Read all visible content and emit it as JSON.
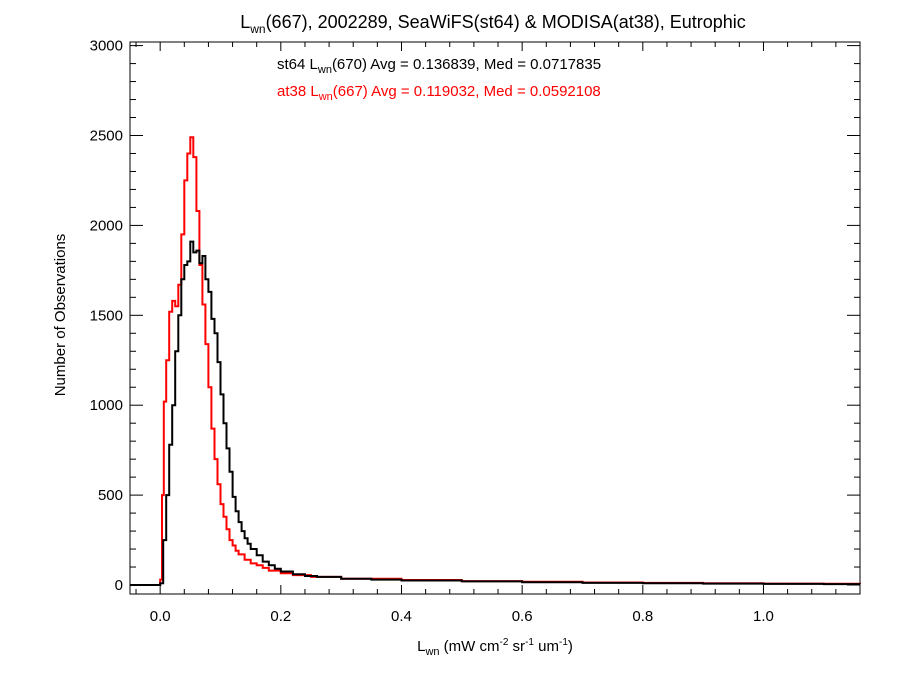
{
  "chart_data": {
    "type": "line",
    "title": {
      "base": "L",
      "sub": "wn",
      "rest": "(667), 2002289, SeaWiFS(st64) & MODISA(at38), Eutrophic"
    },
    "xlabel": {
      "base": "L",
      "sub": "wn",
      "units_a": " (mW cm",
      "sup_a": "-2",
      "units_b": " sr",
      "sup_b": "-1",
      "units_c": " um",
      "sup_c": "-1",
      "units_d": ")"
    },
    "ylabel": "Number of Observations",
    "xlim": [
      -0.05,
      1.16
    ],
    "ylim": [
      -50,
      3020
    ],
    "x_ticks": [
      0.0,
      0.2,
      0.4,
      0.6,
      0.8,
      1.0
    ],
    "x_tick_labels": [
      "0.0",
      "0.2",
      "0.4",
      "0.6",
      "0.8",
      "1.0"
    ],
    "y_ticks": [
      0,
      500,
      1000,
      1500,
      2000,
      2500,
      3000
    ],
    "y_tick_labels": [
      "0",
      "500",
      "1000",
      "1500",
      "2000",
      "2500",
      "3000"
    ],
    "grid": false,
    "series": [
      {
        "name": "st64",
        "color": "#000000",
        "annotation": {
          "pre": "st64 L",
          "sub": "wn",
          "post": "(670) Avg = 0.136839, Med = 0.0717835"
        },
        "x": [
          -0.05,
          0.0,
          0.005,
          0.01,
          0.015,
          0.02,
          0.025,
          0.03,
          0.035,
          0.04,
          0.045,
          0.05,
          0.055,
          0.06,
          0.065,
          0.07,
          0.075,
          0.08,
          0.085,
          0.09,
          0.095,
          0.1,
          0.105,
          0.11,
          0.115,
          0.12,
          0.125,
          0.13,
          0.135,
          0.14,
          0.145,
          0.15,
          0.16,
          0.17,
          0.18,
          0.19,
          0.2,
          0.22,
          0.24,
          0.26,
          0.3,
          0.35,
          0.4,
          0.5,
          0.6,
          0.7,
          0.8,
          0.9,
          1.0,
          1.1,
          1.16
        ],
        "y": [
          0,
          10,
          250,
          500,
          780,
          1000,
          1300,
          1500,
          1700,
          1780,
          1800,
          1910,
          1850,
          1860,
          1790,
          1830,
          1700,
          1630,
          1480,
          1400,
          1240,
          1060,
          900,
          760,
          630,
          490,
          410,
          350,
          300,
          260,
          230,
          200,
          165,
          130,
          110,
          90,
          75,
          60,
          50,
          45,
          35,
          30,
          25,
          20,
          15,
          12,
          10,
          8,
          6,
          5,
          5
        ]
      },
      {
        "name": "at38",
        "color": "#ff0000",
        "annotation": {
          "pre": "at38 L",
          "sub": "wn",
          "post": "(667) Avg = 0.119032, Med = 0.0592108"
        },
        "x": [
          -0.05,
          0.0,
          0.003,
          0.006,
          0.01,
          0.015,
          0.02,
          0.025,
          0.03,
          0.035,
          0.04,
          0.045,
          0.05,
          0.055,
          0.06,
          0.065,
          0.07,
          0.075,
          0.08,
          0.085,
          0.09,
          0.095,
          0.1,
          0.105,
          0.11,
          0.115,
          0.12,
          0.125,
          0.13,
          0.14,
          0.15,
          0.16,
          0.17,
          0.18,
          0.2,
          0.22,
          0.25,
          0.3,
          0.4,
          0.5,
          0.6,
          0.7,
          0.8,
          0.9,
          1.0,
          1.1,
          1.16
        ],
        "y": [
          0,
          30,
          500,
          1020,
          1250,
          1520,
          1580,
          1550,
          1670,
          1950,
          2250,
          2400,
          2490,
          2380,
          2080,
          1780,
          1560,
          1340,
          1100,
          870,
          700,
          560,
          450,
          380,
          310,
          250,
          220,
          190,
          170,
          140,
          120,
          110,
          95,
          80,
          65,
          55,
          45,
          35,
          28,
          22,
          18,
          14,
          12,
          10,
          8,
          7,
          6
        ]
      }
    ]
  }
}
